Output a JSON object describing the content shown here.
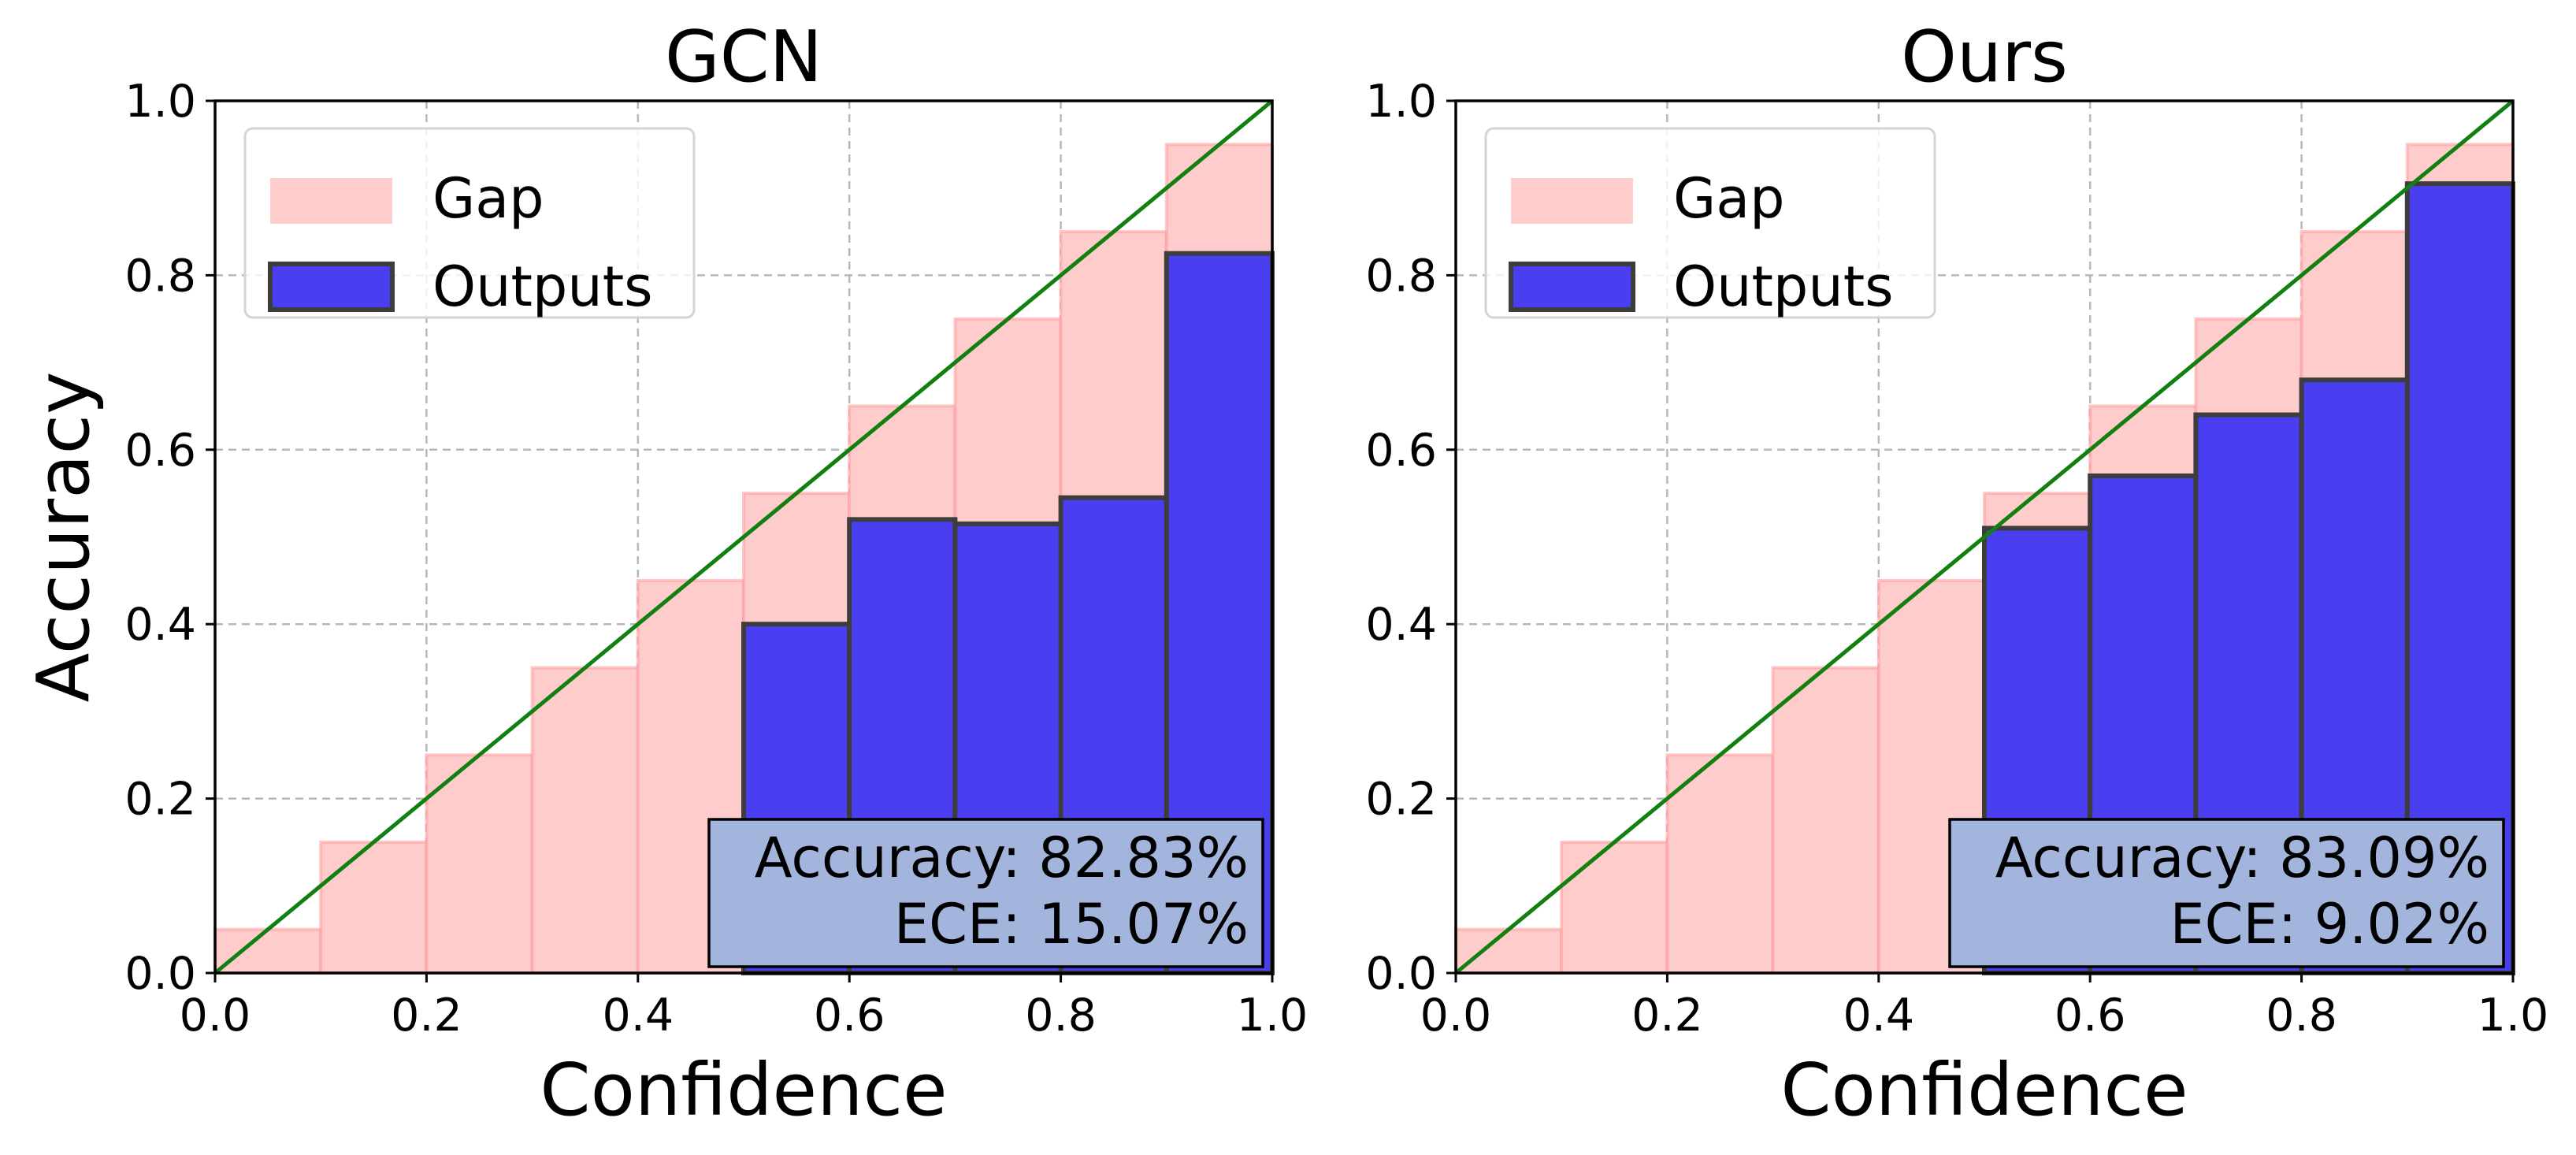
{
  "colors": {
    "gap_fill": "#ffcccc",
    "outputs_fill": "#4a3ff0",
    "outputs_edge": "#3d3d3d",
    "diagonal": "#118011",
    "grid": "#b8b8b8",
    "stats_box_fill": "#a3b5dc"
  },
  "chart_data": [
    {
      "type": "bar",
      "title": "GCN",
      "xlabel": "Confidence",
      "ylabel": "Accuracy",
      "xlim": [
        0,
        1
      ],
      "ylim": [
        0,
        1
      ],
      "xticks": [
        "0.0",
        "0.2",
        "0.4",
        "0.6",
        "0.8",
        "1.0"
      ],
      "yticks": [
        "0.0",
        "0.2",
        "0.4",
        "0.6",
        "0.8",
        "1.0"
      ],
      "grid": true,
      "legend_position": "top-left",
      "bins": [
        0.0,
        0.1,
        0.2,
        0.3,
        0.4,
        0.5,
        0.6,
        0.7,
        0.8,
        0.9
      ],
      "series": [
        {
          "name": "Gap",
          "values": [
            0.05,
            0.15,
            0.25,
            0.35,
            0.45,
            0.55,
            0.65,
            0.75,
            0.85,
            0.95
          ]
        },
        {
          "name": "Outputs",
          "values": [
            0,
            0,
            0,
            0,
            0,
            0.4,
            0.52,
            0.515,
            0.545,
            0.825
          ]
        }
      ],
      "stats": [
        "Accuracy: 82.83%",
        "ECE: 15.07%"
      ]
    },
    {
      "type": "bar",
      "title": "Ours",
      "xlabel": "Confidence",
      "ylabel": "",
      "xlim": [
        0,
        1
      ],
      "ylim": [
        0,
        1
      ],
      "xticks": [
        "0.0",
        "0.2",
        "0.4",
        "0.6",
        "0.8",
        "1.0"
      ],
      "yticks": [
        "0.0",
        "0.2",
        "0.4",
        "0.6",
        "0.8",
        "1.0"
      ],
      "grid": true,
      "legend_position": "top-left",
      "bins": [
        0.0,
        0.1,
        0.2,
        0.3,
        0.4,
        0.5,
        0.6,
        0.7,
        0.8,
        0.9
      ],
      "series": [
        {
          "name": "Gap",
          "values": [
            0.05,
            0.15,
            0.25,
            0.35,
            0.45,
            0.55,
            0.65,
            0.75,
            0.85,
            0.95
          ]
        },
        {
          "name": "Outputs",
          "values": [
            0,
            0,
            0,
            0,
            0,
            0.51,
            0.57,
            0.64,
            0.68,
            0.905
          ]
        }
      ],
      "stats": [
        "Accuracy: 83.09%",
        "ECE: 9.02%"
      ]
    }
  ]
}
